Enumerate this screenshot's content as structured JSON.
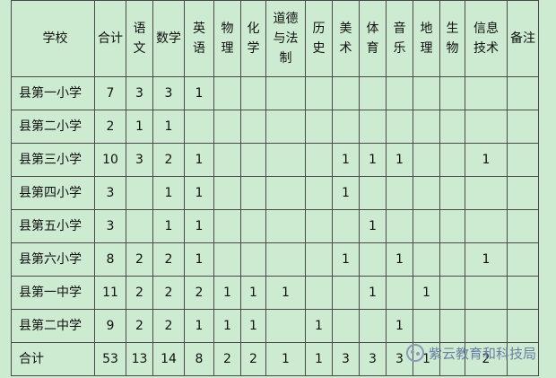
{
  "table": {
    "header": [
      "学校",
      "合计",
      "语文",
      "数学",
      "英语",
      "物理",
      "化学",
      "道德与法制",
      "历史",
      "美术",
      "体育",
      "音乐",
      "地理",
      "生物",
      "信息技术",
      "备注"
    ],
    "rows": [
      [
        "县第一小学",
        7,
        3,
        3,
        1,
        null,
        null,
        null,
        null,
        null,
        null,
        null,
        null,
        null,
        null,
        null
      ],
      [
        "县第二小学",
        2,
        1,
        1,
        null,
        null,
        null,
        null,
        null,
        null,
        null,
        null,
        null,
        null,
        null,
        null
      ],
      [
        "县第三小学",
        10,
        3,
        2,
        1,
        null,
        null,
        null,
        null,
        1,
        1,
        1,
        null,
        null,
        1,
        null
      ],
      [
        "县第四小学",
        3,
        null,
        1,
        1,
        null,
        null,
        null,
        null,
        1,
        null,
        null,
        null,
        null,
        null,
        null
      ],
      [
        "县第五小学",
        3,
        null,
        1,
        1,
        null,
        null,
        null,
        null,
        null,
        1,
        null,
        null,
        null,
        null,
        null
      ],
      [
        "县第六小学",
        8,
        2,
        2,
        1,
        null,
        null,
        null,
        null,
        1,
        null,
        1,
        null,
        null,
        1,
        null
      ],
      [
        "县第一中学",
        11,
        2,
        2,
        2,
        1,
        1,
        1,
        null,
        null,
        1,
        null,
        1,
        null,
        null,
        null
      ],
      [
        "县第二中学",
        9,
        2,
        2,
        1,
        1,
        1,
        null,
        1,
        null,
        null,
        1,
        null,
        null,
        null,
        null
      ],
      [
        "合计",
        53,
        13,
        14,
        8,
        2,
        2,
        1,
        1,
        3,
        3,
        3,
        1,
        null,
        2,
        null
      ]
    ]
  },
  "watermark": "紫云教育和科技局"
}
